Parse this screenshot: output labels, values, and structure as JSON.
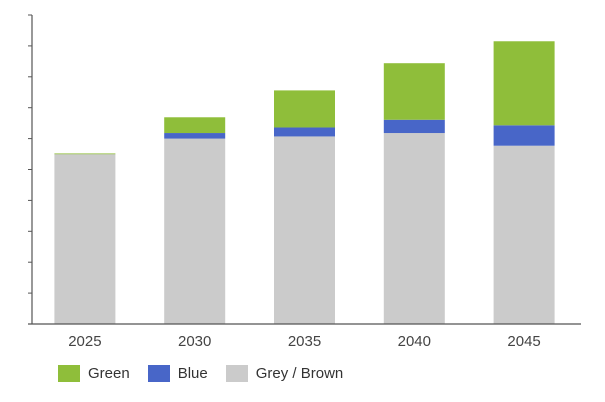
{
  "chart_data": {
    "type": "bar",
    "stacked": true,
    "title": "",
    "xlabel": "",
    "ylabel": "",
    "ylim": [
      0,
      10
    ],
    "ytick_count": 11,
    "y_tick_labels_shown": false,
    "categories": [
      "2025",
      "2030",
      "2035",
      "2040",
      "2045"
    ],
    "series": [
      {
        "name": "Grey / Brown",
        "color": "#cbcbcb",
        "values": [
          5.5,
          6.0,
          6.07,
          6.18,
          5.77
        ]
      },
      {
        "name": "Blue",
        "color": "#4866c8",
        "values": [
          0,
          0.18,
          0.29,
          0.43,
          0.66
        ]
      },
      {
        "name": "Green",
        "color": "#8fbe3a",
        "values": [
          0.02,
          0.51,
          1.2,
          1.83,
          2.72
        ]
      }
    ],
    "legend": {
      "placement": "bottom-left",
      "order": [
        "Green",
        "Blue",
        "Grey / Brown"
      ]
    },
    "grid": false
  }
}
